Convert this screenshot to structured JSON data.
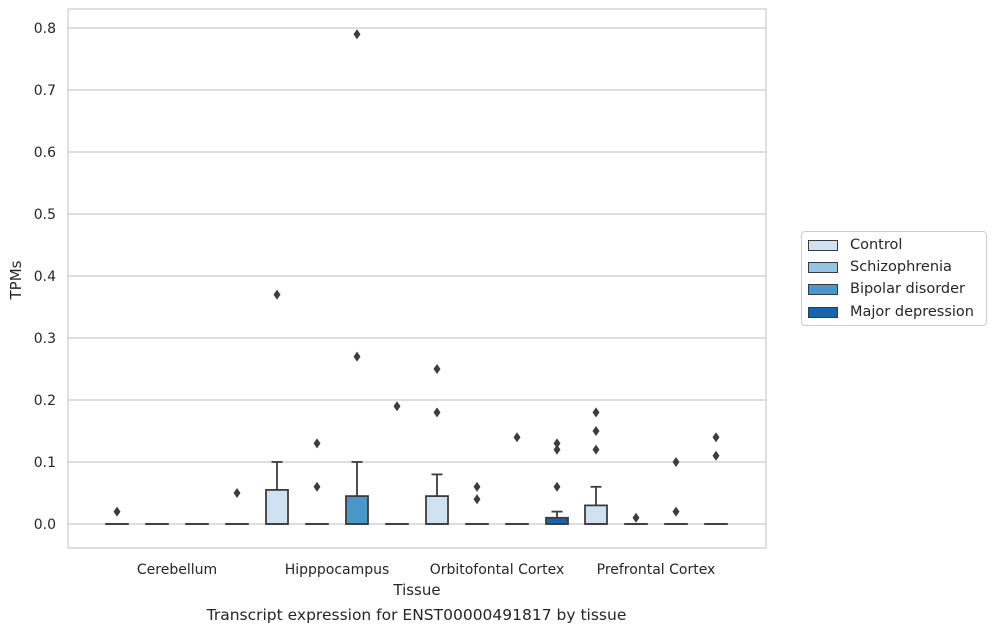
{
  "chart_data": {
    "type": "box",
    "caption": "Transcript expression for ENST00000491817 by tissue",
    "xlabel": "Tissue",
    "ylabel": "TPMs",
    "ylim": [
      -0.04,
      0.83
    ],
    "yticks": [
      "0.0",
      "0.1",
      "0.2",
      "0.3",
      "0.4",
      "0.5",
      "0.6",
      "0.7",
      "0.8"
    ],
    "grid": true,
    "legend_position": "right",
    "categories": [
      "Cerebellum",
      "Hipppocampus",
      "Orbitofontal Cortex",
      "Prefrontal Cortex"
    ],
    "series": [
      {
        "name": "Control",
        "color": "#d0e1f2",
        "boxes": [
          {
            "q1": 0,
            "median": 0,
            "q3": 0,
            "whisker_low": 0,
            "whisker_high": 0,
            "outliers": [
              0.02
            ]
          },
          {
            "q1": 0,
            "median": 0,
            "q3": 0.055,
            "whisker_low": 0,
            "whisker_high": 0.1,
            "outliers": [
              0.37
            ]
          },
          {
            "q1": 0,
            "median": 0,
            "q3": 0.045,
            "whisker_low": 0,
            "whisker_high": 0.08,
            "outliers": [
              0.25,
              0.18
            ]
          },
          {
            "q1": 0,
            "median": 0,
            "q3": 0.03,
            "whisker_low": 0,
            "whisker_high": 0.06,
            "outliers": [
              0.18,
              0.15,
              0.12
            ]
          }
        ]
      },
      {
        "name": "Schizophrenia",
        "color": "#94c4df",
        "boxes": [
          {
            "q1": 0,
            "median": 0,
            "q3": 0,
            "whisker_low": 0,
            "whisker_high": 0,
            "outliers": []
          },
          {
            "q1": 0,
            "median": 0,
            "q3": 0,
            "whisker_low": 0,
            "whisker_high": 0,
            "outliers": [
              0.13,
              0.06
            ]
          },
          {
            "q1": 0,
            "median": 0,
            "q3": 0,
            "whisker_low": 0,
            "whisker_high": 0,
            "outliers": [
              0.06,
              0.04
            ]
          },
          {
            "q1": 0,
            "median": 0,
            "q3": 0,
            "whisker_low": 0,
            "whisker_high": 0,
            "outliers": [
              0.01
            ]
          }
        ]
      },
      {
        "name": "Bipolar disorder",
        "color": "#4a98c9",
        "boxes": [
          {
            "q1": 0,
            "median": 0,
            "q3": 0,
            "whisker_low": 0,
            "whisker_high": 0,
            "outliers": []
          },
          {
            "q1": 0,
            "median": 0,
            "q3": 0.045,
            "whisker_low": 0,
            "whisker_high": 0.1,
            "outliers": [
              0.79,
              0.27
            ]
          },
          {
            "q1": 0,
            "median": 0,
            "q3": 0,
            "whisker_low": 0,
            "whisker_high": 0,
            "outliers": [
              0.14
            ]
          },
          {
            "q1": 0,
            "median": 0,
            "q3": 0,
            "whisker_low": 0,
            "whisker_high": 0,
            "outliers": [
              0.1,
              0.02
            ]
          }
        ]
      },
      {
        "name": "Major depression",
        "color": "#1764ab",
        "boxes": [
          {
            "q1": 0,
            "median": 0,
            "q3": 0,
            "whisker_low": 0,
            "whisker_high": 0,
            "outliers": [
              0.05
            ]
          },
          {
            "q1": 0,
            "median": 0,
            "q3": 0,
            "whisker_low": 0,
            "whisker_high": 0,
            "outliers": [
              0.19
            ]
          },
          {
            "q1": 0,
            "median": 0,
            "q3": 0.01,
            "whisker_low": 0,
            "whisker_high": 0.02,
            "outliers": [
              0.13,
              0.12,
              0.06
            ]
          },
          {
            "q1": 0,
            "median": 0,
            "q3": 0,
            "whisker_low": 0,
            "whisker_high": 0,
            "outliers": [
              0.14,
              0.11
            ]
          }
        ]
      }
    ]
  }
}
